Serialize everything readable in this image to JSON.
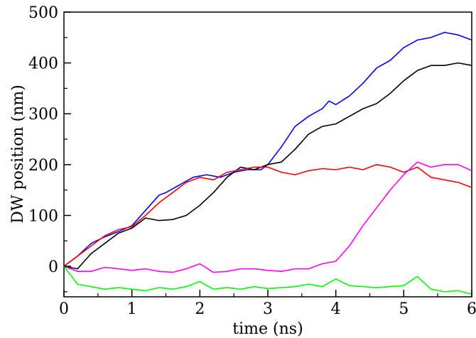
{
  "chart_data": {
    "type": "line",
    "title": "",
    "xlabel": "time (ns)",
    "ylabel": "DW position (nm)",
    "xlim": [
      0,
      6
    ],
    "ylim": [
      -60,
      500
    ],
    "x_ticks": [
      0,
      1,
      2,
      3,
      4,
      5,
      6
    ],
    "y_ticks": [
      0,
      100,
      200,
      300,
      400,
      500
    ],
    "grid": false,
    "legend": "none",
    "series": [
      {
        "color": "#0000ff",
        "x": [
          0,
          0.2,
          0.4,
          0.6,
          0.8,
          1.0,
          1.2,
          1.4,
          1.5,
          1.7,
          1.9,
          2.1,
          2.3,
          2.5,
          2.7,
          2.9,
          3.0,
          3.2,
          3.4,
          3.6,
          3.8,
          3.9,
          4.0,
          4.2,
          4.4,
          4.6,
          4.8,
          5.0,
          5.2,
          5.4,
          5.6,
          5.8,
          6.0
        ],
        "y": [
          0,
          20,
          45,
          58,
          68,
          80,
          110,
          140,
          145,
          160,
          175,
          180,
          175,
          185,
          190,
          190,
          200,
          235,
          275,
          295,
          310,
          325,
          318,
          335,
          360,
          390,
          405,
          430,
          445,
          450,
          460,
          455,
          445
        ]
      },
      {
        "color": "#000000",
        "x": [
          0,
          0.2,
          0.4,
          0.6,
          0.8,
          1.0,
          1.2,
          1.4,
          1.6,
          1.8,
          2.0,
          2.2,
          2.4,
          2.6,
          2.8,
          3.0,
          3.2,
          3.4,
          3.6,
          3.8,
          4.0,
          4.2,
          4.4,
          4.6,
          4.8,
          5.0,
          5.2,
          5.4,
          5.6,
          5.8,
          6.0
        ],
        "y": [
          0,
          -5,
          25,
          45,
          65,
          75,
          95,
          90,
          92,
          100,
          120,
          145,
          175,
          195,
          190,
          200,
          205,
          230,
          260,
          275,
          280,
          295,
          310,
          320,
          340,
          365,
          385,
          395,
          395,
          400,
          395
        ]
      },
      {
        "color": "#ff0000",
        "x": [
          0,
          0.2,
          0.4,
          0.6,
          0.8,
          1.0,
          1.2,
          1.4,
          1.6,
          1.8,
          2.0,
          2.2,
          2.4,
          2.6,
          2.8,
          3.0,
          3.2,
          3.4,
          3.6,
          3.8,
          4.0,
          4.2,
          4.4,
          4.6,
          4.8,
          5.0,
          5.2,
          5.4,
          5.6,
          5.8,
          6.0
        ],
        "y": [
          0,
          20,
          40,
          60,
          72,
          78,
          100,
          125,
          145,
          165,
          175,
          170,
          185,
          190,
          195,
          195,
          185,
          180,
          188,
          192,
          190,
          195,
          190,
          200,
          195,
          185,
          195,
          175,
          170,
          165,
          155
        ]
      },
      {
        "color": "#ff00ff",
        "x": [
          0,
          0.2,
          0.4,
          0.6,
          0.8,
          1.0,
          1.2,
          1.4,
          1.6,
          1.8,
          2.0,
          2.2,
          2.4,
          2.6,
          2.8,
          3.0,
          3.2,
          3.4,
          3.6,
          3.8,
          4.0,
          4.2,
          4.4,
          4.6,
          4.8,
          5.0,
          5.2,
          5.4,
          5.6,
          5.8,
          6.0
        ],
        "y": [
          0,
          -10,
          -10,
          -2,
          -5,
          -8,
          -5,
          -10,
          -12,
          -5,
          5,
          -12,
          -10,
          -5,
          -5,
          -8,
          -10,
          -5,
          -5,
          5,
          10,
          40,
          80,
          115,
          150,
          180,
          205,
          195,
          200,
          200,
          188
        ]
      },
      {
        "color": "#00ff00",
        "x": [
          0,
          0.2,
          0.4,
          0.6,
          0.8,
          1.0,
          1.2,
          1.4,
          1.6,
          1.8,
          2.0,
          2.2,
          2.4,
          2.6,
          2.8,
          3.0,
          3.2,
          3.4,
          3.6,
          3.8,
          4.0,
          4.2,
          4.4,
          4.6,
          4.8,
          5.0,
          5.2,
          5.4,
          5.6,
          5.8,
          6.0
        ],
        "y": [
          0,
          -35,
          -40,
          -45,
          -42,
          -45,
          -48,
          -42,
          -45,
          -40,
          -30,
          -45,
          -42,
          -45,
          -40,
          -44,
          -42,
          -40,
          -35,
          -40,
          -25,
          -38,
          -40,
          -42,
          -40,
          -38,
          -20,
          -45,
          -50,
          -48,
          -55
        ]
      }
    ]
  }
}
